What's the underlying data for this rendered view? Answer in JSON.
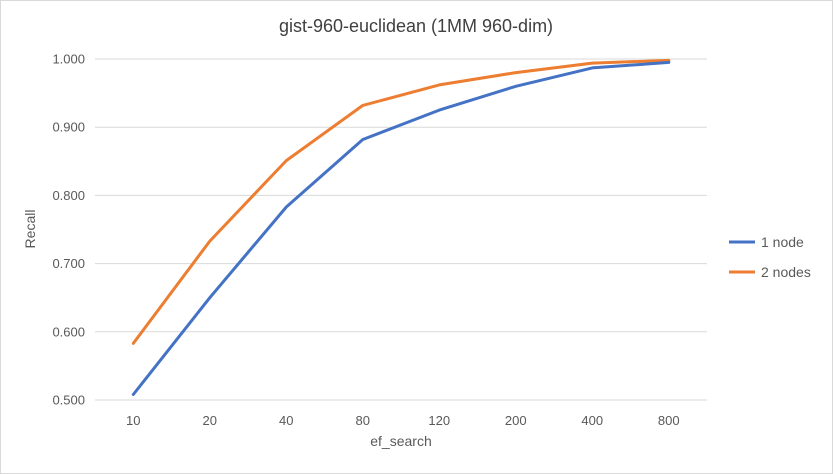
{
  "chart_data": {
    "type": "line",
    "title": "gist-960-euclidean (1MM 960-dim)",
    "xlabel": "ef_search",
    "ylabel": "Recall",
    "categories": [
      "10",
      "20",
      "40",
      "80",
      "120",
      "200",
      "400",
      "800"
    ],
    "y_ticks": [
      "0.500",
      "0.600",
      "0.700",
      "0.800",
      "0.900",
      "1.000"
    ],
    "ylim": [
      0.5,
      1.0
    ],
    "grid": true,
    "legend_position": "right",
    "series": [
      {
        "name": "1 node",
        "color": "#4472C4",
        "values": [
          0.508,
          0.65,
          0.783,
          0.882,
          0.925,
          0.96,
          0.987,
          0.995
        ]
      },
      {
        "name": "2 nodes",
        "color": "#ED7D31",
        "values": [
          0.583,
          0.733,
          0.851,
          0.932,
          0.962,
          0.98,
          0.994,
          0.998
        ]
      }
    ]
  }
}
